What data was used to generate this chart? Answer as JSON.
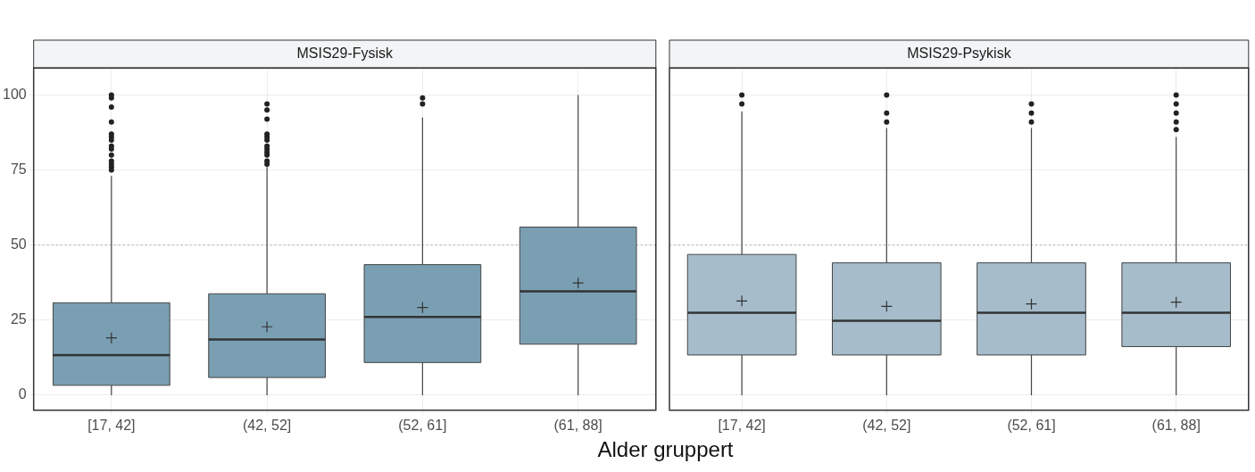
{
  "chart_data": [
    {
      "type": "box",
      "title": "MSIS29-Fysisk",
      "xlabel": "Alder gruppert",
      "categories": [
        "[17, 42]",
        "(42, 52]",
        "(52, 61]",
        "(61, 88]"
      ],
      "color": "#7a9fb3",
      "boxes": [
        {
          "low": 0,
          "q1": 3.3,
          "median": 13.4,
          "q3": 30.8,
          "high": 73,
          "mean": 19.1,
          "outliers": [
            100,
            99,
            96,
            91,
            87,
            86,
            85,
            83,
            82,
            80,
            78,
            77,
            76,
            75
          ]
        },
        {
          "low": 0,
          "q1": 5.9,
          "median": 18.6,
          "q3": 33.8,
          "high": 76,
          "mean": 22.8,
          "outliers": [
            97,
            95,
            92,
            87,
            86,
            85,
            83,
            82,
            81,
            80,
            78,
            77
          ]
        },
        {
          "low": 0,
          "q1": 10.9,
          "median": 26.1,
          "q3": 43.5,
          "high": 92.5,
          "mean": 29.2,
          "outliers": [
            99,
            97
          ]
        },
        {
          "low": 0,
          "q1": 17,
          "median": 34.6,
          "q3": 56,
          "high": 100,
          "mean": 37.4
        }
      ],
      "ylim": [
        -5,
        109
      ],
      "yticks": [
        0,
        25,
        50,
        75,
        100
      ],
      "grid": true,
      "ref_lines": [
        {
          "axis": "y",
          "value": 50,
          "color": "#9fb3c0",
          "line_style": "dotted"
        }
      ]
    },
    {
      "type": "box",
      "title": "MSIS29-Psykisk",
      "categories": [
        "[17, 42]",
        "(42, 52]",
        "(52, 61]",
        "(61, 88]"
      ],
      "color": "#a6bccb",
      "boxes": [
        {
          "low": 0,
          "q1": 13.4,
          "median": 27.5,
          "q3": 46.9,
          "high": 94.5,
          "mean": 31.4,
          "outliers": [
            100,
            97
          ]
        },
        {
          "low": 0,
          "q1": 13.4,
          "median": 24.8,
          "q3": 44.1,
          "high": 89,
          "mean": 29.6,
          "outliers": [
            100,
            94,
            91
          ]
        },
        {
          "low": 0,
          "q1": 13.4,
          "median": 27.5,
          "q3": 44.1,
          "high": 89,
          "mean": 30.4,
          "outliers": [
            97,
            94,
            91
          ]
        },
        {
          "low": 0,
          "q1": 16.2,
          "median": 27.5,
          "q3": 44.1,
          "high": 86,
          "mean": 31,
          "outliers": [
            100,
            97,
            94,
            91,
            88.5
          ]
        }
      ],
      "ylim": [
        -5,
        109
      ],
      "yticks": [
        0,
        25,
        50,
        75,
        100
      ],
      "grid": true,
      "tick_labels": "x",
      "ref_lines": [
        {
          "axis": "y",
          "value": 50,
          "color": "#9fb3c0",
          "line_style": "dotted"
        }
      ]
    }
  ]
}
